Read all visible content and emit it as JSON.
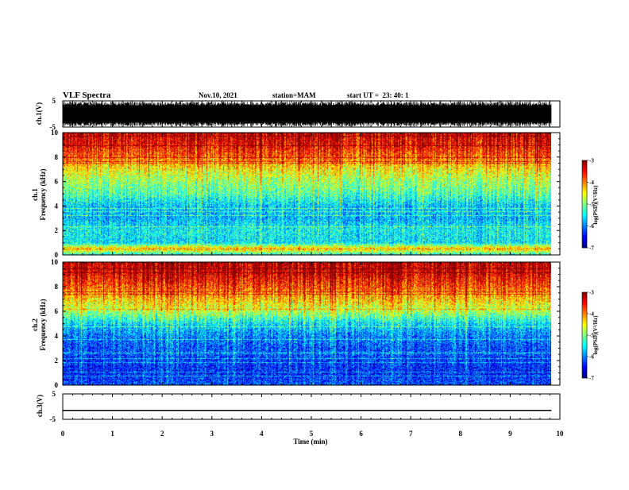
{
  "header": {
    "title": "VLF Spectra",
    "date": "Nov.10, 2021",
    "station": "station=MAM",
    "start_ut": "start UT =  23: 40: 1"
  },
  "chart_data": [
    {
      "type": "line",
      "name": "ch1-waveform",
      "ylabel": "ch.1(V)",
      "ylim": [
        -5,
        5
      ],
      "y_ticks": [
        "5",
        "-5"
      ],
      "description_kind": "dense noise waveform filling most of range"
    },
    {
      "type": "heatmap",
      "name": "ch1-spectrogram",
      "ylabel": "ch.1\nFrequency (kHz)",
      "ylabel_lines": [
        "ch.1",
        "Frequency (kHz)"
      ],
      "ylim": [
        0,
        10
      ],
      "y_ticks": [
        "0",
        "2",
        "4",
        "6",
        "8",
        "10"
      ],
      "colorbar": {
        "label": "log(PSD)(V²/Hz)",
        "range": [
          -7,
          -3
        ],
        "ticks": [
          "-3",
          "-4",
          "-5",
          "-6",
          "-7"
        ]
      },
      "band_profile": [
        {
          "f": 0.0,
          "level": -5.5
        },
        {
          "f": 0.5,
          "level": -4.2
        },
        {
          "f": 1.0,
          "level": -5.6
        },
        {
          "f": 2.0,
          "level": -5.5
        },
        {
          "f": 3.0,
          "level": -5.8
        },
        {
          "f": 4.0,
          "level": -5.7
        },
        {
          "f": 5.0,
          "level": -5.2
        },
        {
          "f": 6.0,
          "level": -4.9
        },
        {
          "f": 7.0,
          "level": -4.5
        },
        {
          "f": 8.0,
          "level": -3.9
        },
        {
          "f": 9.0,
          "level": -3.5
        },
        {
          "f": 10.0,
          "level": -3.3
        }
      ]
    },
    {
      "type": "heatmap",
      "name": "ch2-spectrogram",
      "ylabel": "ch.2\nFrequency (kHz)",
      "ylabel_lines": [
        "ch.2",
        "Frequency (kHz)"
      ],
      "ylim": [
        0,
        10
      ],
      "y_ticks": [
        "0",
        "2",
        "4",
        "6",
        "8",
        "10"
      ],
      "colorbar": {
        "label": "log(PSD)(V²/Hz)",
        "range": [
          -7,
          -3
        ],
        "ticks": [
          "-3",
          "-4",
          "-5",
          "-6",
          "-7"
        ]
      },
      "band_profile": [
        {
          "f": 0.0,
          "level": -6.2
        },
        {
          "f": 1.0,
          "level": -6.4
        },
        {
          "f": 2.0,
          "level": -6.3
        },
        {
          "f": 3.0,
          "level": -6.2
        },
        {
          "f": 4.0,
          "level": -6.0
        },
        {
          "f": 5.0,
          "level": -5.6
        },
        {
          "f": 6.0,
          "level": -4.8
        },
        {
          "f": 7.0,
          "level": -4.3
        },
        {
          "f": 8.0,
          "level": -3.8
        },
        {
          "f": 9.0,
          "level": -3.4
        },
        {
          "f": 10.0,
          "level": -3.2
        }
      ]
    },
    {
      "type": "line",
      "name": "ch3-waveform",
      "ylabel": "ch.3(V)",
      "ylim": [
        -5,
        5
      ],
      "y_ticks": [
        "5",
        "-5"
      ],
      "x": [
        0,
        9.83
      ],
      "y": [
        -1.5,
        -1.5
      ]
    }
  ],
  "xaxis": {
    "label": "Time (min)",
    "range": [
      0,
      10
    ],
    "ticks": [
      "0",
      "1",
      "2",
      "3",
      "4",
      "5",
      "6",
      "7",
      "8",
      "9",
      "10"
    ],
    "data_end": 9.83
  },
  "colors": {
    "axis": "#000000",
    "background": "#ffffff"
  }
}
